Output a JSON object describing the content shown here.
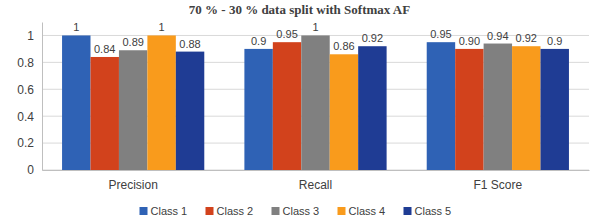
{
  "chart_data": {
    "type": "bar",
    "title": "70 % - 30 % data split with Softmax AF",
    "categories": [
      "Precision",
      "Recall",
      "F1 Score"
    ],
    "series": [
      {
        "name": "Class 1",
        "color": "#2f62b5",
        "values": [
          1,
          0.9,
          0.95
        ]
      },
      {
        "name": "Class 2",
        "color": "#d2421c",
        "values": [
          0.84,
          0.95,
          0.9
        ],
        "value_labels": [
          "0.84",
          "0.95",
          "0.90"
        ]
      },
      {
        "name": "Class 3",
        "color": "#808080",
        "values": [
          0.89,
          1,
          0.94
        ]
      },
      {
        "name": "Class 4",
        "color": "#f99b1c",
        "values": [
          1,
          0.86,
          0.92
        ]
      },
      {
        "name": "Class 5",
        "color": "#1f3c94",
        "values": [
          0.88,
          0.92,
          0.9
        ]
      }
    ],
    "ylim": [
      0,
      1.1
    ],
    "yticks": [
      0,
      0.2,
      0.4,
      0.6,
      0.8,
      1
    ],
    "grid": true,
    "data_labels": true,
    "legend": "bottom"
  }
}
